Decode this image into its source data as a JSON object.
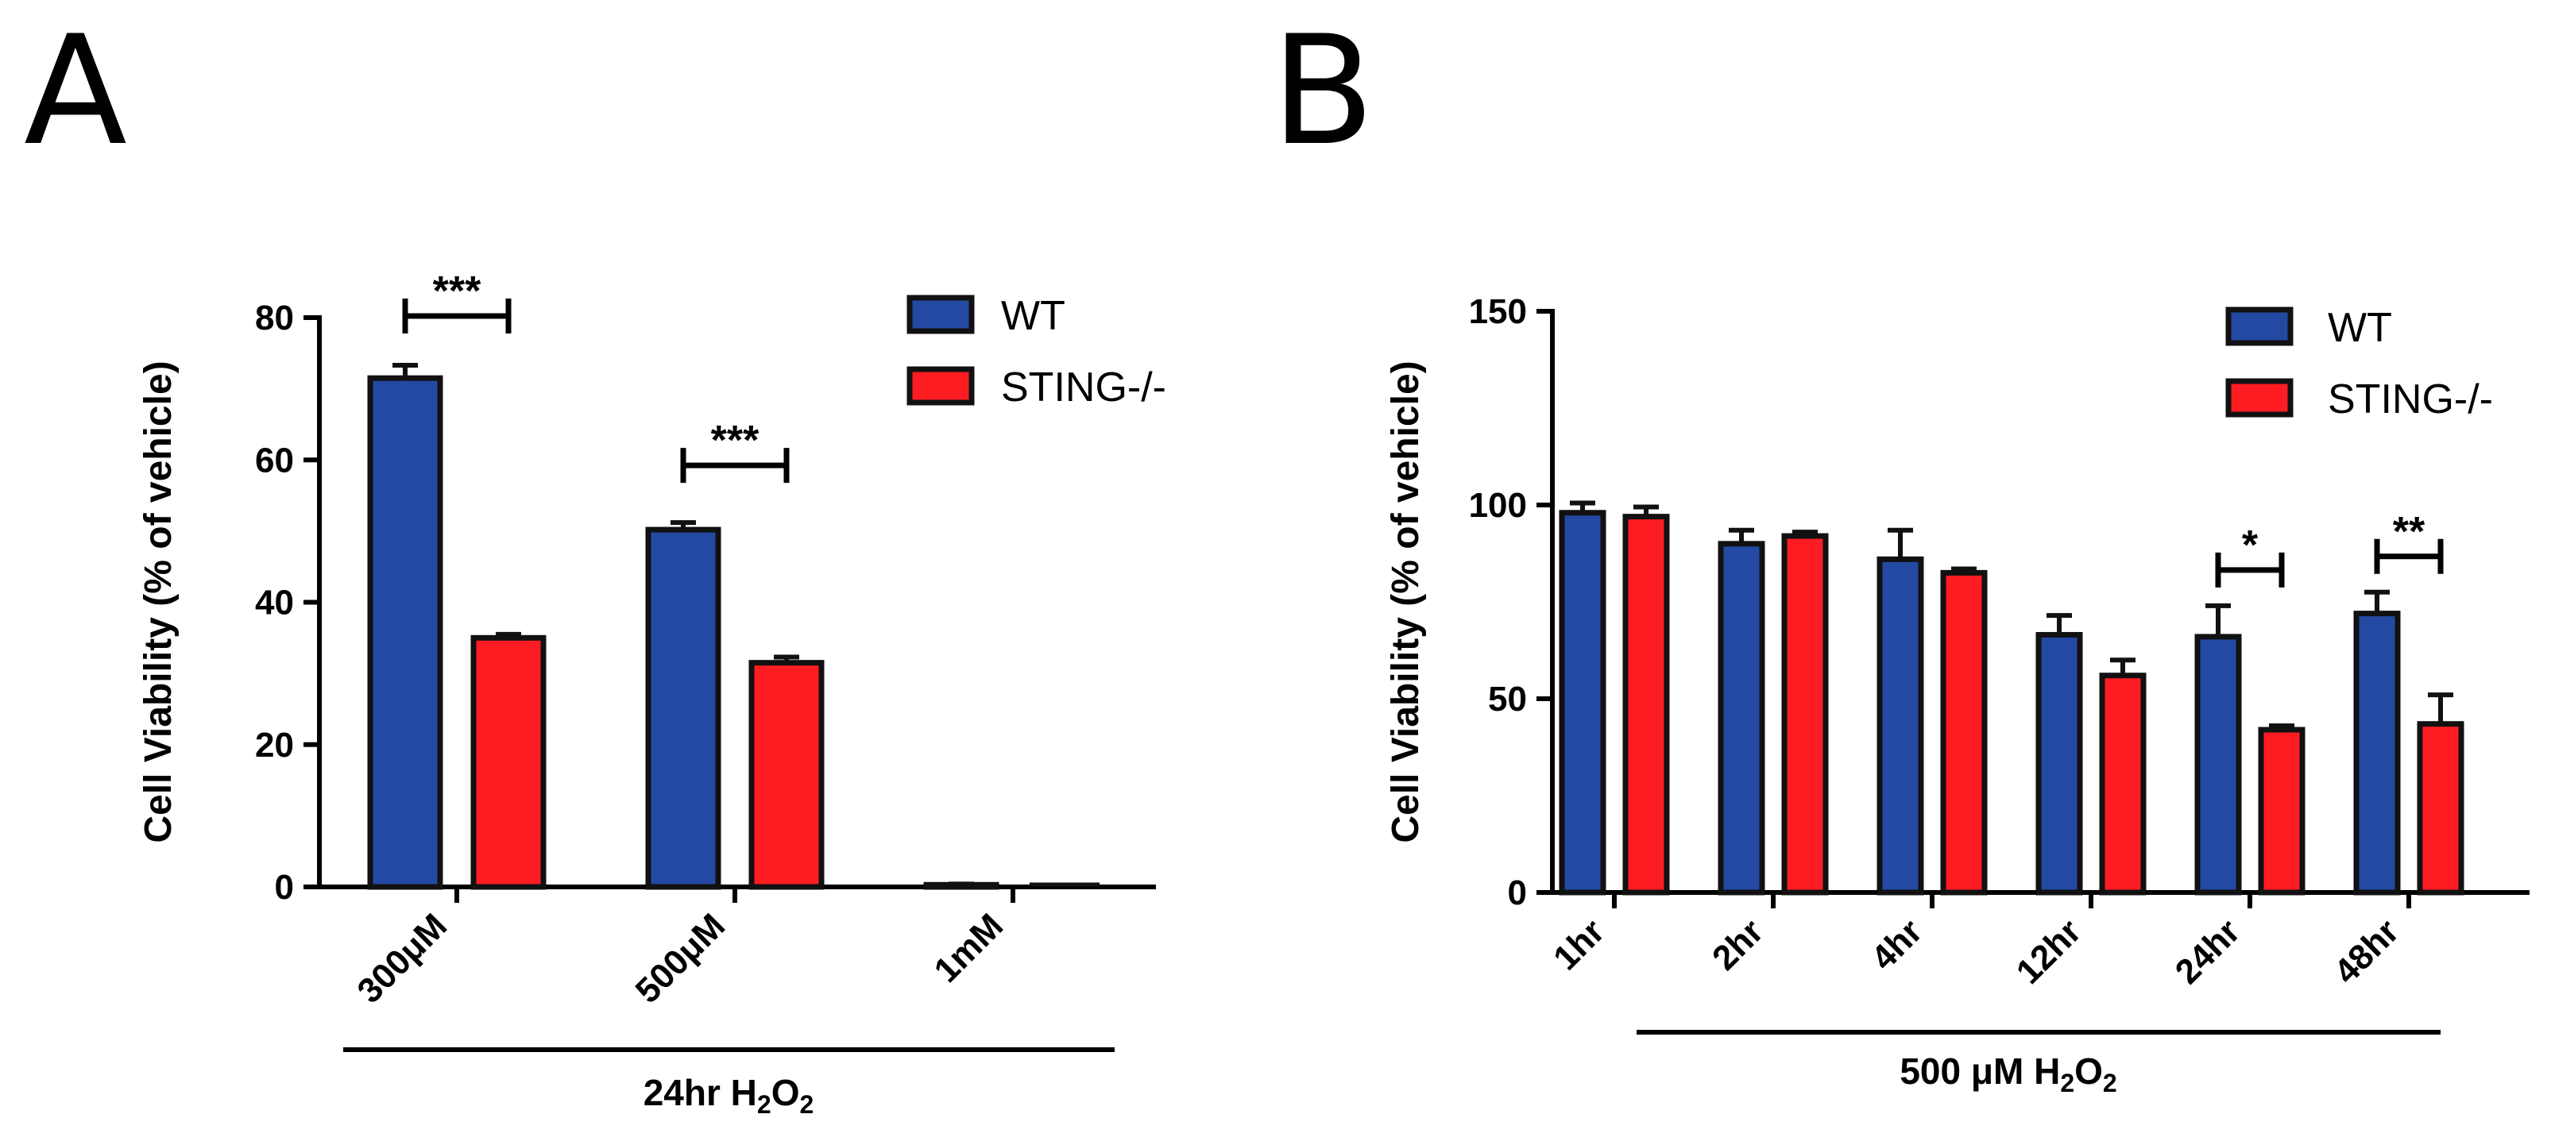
{
  "panels": [
    {
      "letter": "A"
    },
    {
      "letter": "B"
    }
  ],
  "colors": {
    "WT": "#2449a3",
    "STING": "#fe1c23",
    "outline": "#111111"
  },
  "chart_data": [
    {
      "type": "bar",
      "panel": "A",
      "ylabel": "Cell Viability (% of vehicle)",
      "ylim": [
        0,
        80
      ],
      "yticks": [
        "0",
        "20",
        "40",
        "60",
        "80"
      ],
      "categories": [
        "300μM",
        "500μM",
        "1mM"
      ],
      "group_label": {
        "prefix": "24hr H",
        "sub1": "2",
        "mid": "O",
        "sub2": "2"
      },
      "series": [
        {
          "name": "WT",
          "values": [
            71.5,
            50.2,
            0.3
          ],
          "errors": [
            1.8,
            1.0,
            0.1
          ]
        },
        {
          "name": "STING-/-",
          "values": [
            35,
            31.5,
            0
          ],
          "errors": [
            0.5,
            0.8,
            0
          ]
        }
      ],
      "significance": [
        {
          "category": 0,
          "label": "***"
        },
        {
          "category": 1,
          "label": "***"
        }
      ],
      "legend": "top-right"
    },
    {
      "type": "bar",
      "panel": "B",
      "ylabel": "Cell Viability (%  of vehicle)",
      "ylim": [
        0,
        150
      ],
      "yticks": [
        "0",
        "50",
        "100",
        "150"
      ],
      "categories": [
        "1hr",
        "2hr",
        "4hr",
        "12hr",
        "24hr",
        "48hr"
      ],
      "group_label": {
        "prefix": "500 μM H",
        "sub1": "2",
        "mid": "O",
        "sub2": "2"
      },
      "series": [
        {
          "name": "WT",
          "values": [
            98,
            90,
            86,
            66.5,
            66,
            72
          ],
          "errors": [
            2.5,
            3.5,
            7.5,
            5,
            8,
            5.5
          ]
        },
        {
          "name": "STING-/-",
          "values": [
            97,
            92,
            82.5,
            56,
            42,
            43.5
          ],
          "errors": [
            2.5,
            1,
            1,
            4,
            1,
            7.5
          ]
        }
      ],
      "significance": [
        {
          "category": 4,
          "label": "*"
        },
        {
          "category": 5,
          "label": "**"
        }
      ],
      "legend": "top-right"
    }
  ]
}
